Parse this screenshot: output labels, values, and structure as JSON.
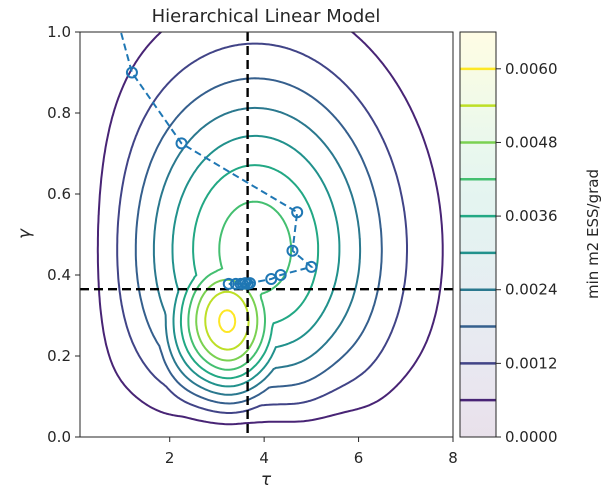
{
  "chart_data": {
    "type": "contour",
    "title": "Hierarchical Linear Model",
    "xlabel": "τ",
    "ylabel": "γ",
    "xlim": [
      0.1,
      8
    ],
    "ylim": [
      0,
      1
    ],
    "x_ticks": [
      2,
      4,
      6,
      8
    ],
    "x_tick_labels": [
      "2",
      "4",
      "6",
      "8"
    ],
    "y_ticks": [
      0.0,
      0.2,
      0.4,
      0.6,
      0.8,
      1.0
    ],
    "y_tick_labels": [
      "0.0",
      "0.2",
      "0.4",
      "0.6",
      "0.8",
      "1.0"
    ],
    "grid": false,
    "colormap": "viridis",
    "colorbar": {
      "label": "min m2 ESS/grad",
      "levels": [
        0.0,
        0.0006,
        0.0012,
        0.0018,
        0.0024,
        0.003,
        0.0036,
        0.0042,
        0.0048,
        0.0054,
        0.006,
        0.0066
      ],
      "tick_values": [
        0.0,
        0.0012,
        0.0024,
        0.0036,
        0.0048,
        0.006
      ],
      "tick_labels": [
        "0.0000",
        "0.0012",
        "0.0024",
        "0.0036",
        "0.0048",
        "0.0060"
      ],
      "colors": [
        "#440154",
        "#482475",
        "#414487",
        "#355f8d",
        "#2a788e",
        "#21918c",
        "#22a884",
        "#44bf70",
        "#7ad151",
        "#bddf26",
        "#fde725"
      ]
    },
    "optimization_path": {
      "color": "#1f77b4",
      "points": [
        [
          0.85,
          1.05
        ],
        [
          1.2,
          0.9
        ],
        [
          2.25,
          0.725
        ],
        [
          4.7,
          0.555
        ],
        [
          4.6,
          0.46
        ],
        [
          5.0,
          0.42
        ],
        [
          4.35,
          0.4
        ],
        [
          4.15,
          0.39
        ],
        [
          3.7,
          0.38
        ],
        [
          3.6,
          0.38
        ],
        [
          3.5,
          0.378
        ],
        [
          3.4,
          0.378
        ],
        [
          3.25,
          0.378
        ],
        [
          3.65,
          0.378
        ],
        [
          3.55,
          0.378
        ]
      ]
    },
    "reference_lines": {
      "x": 3.65,
      "y": 0.365,
      "style": "dashed",
      "color": "#000000"
    }
  }
}
